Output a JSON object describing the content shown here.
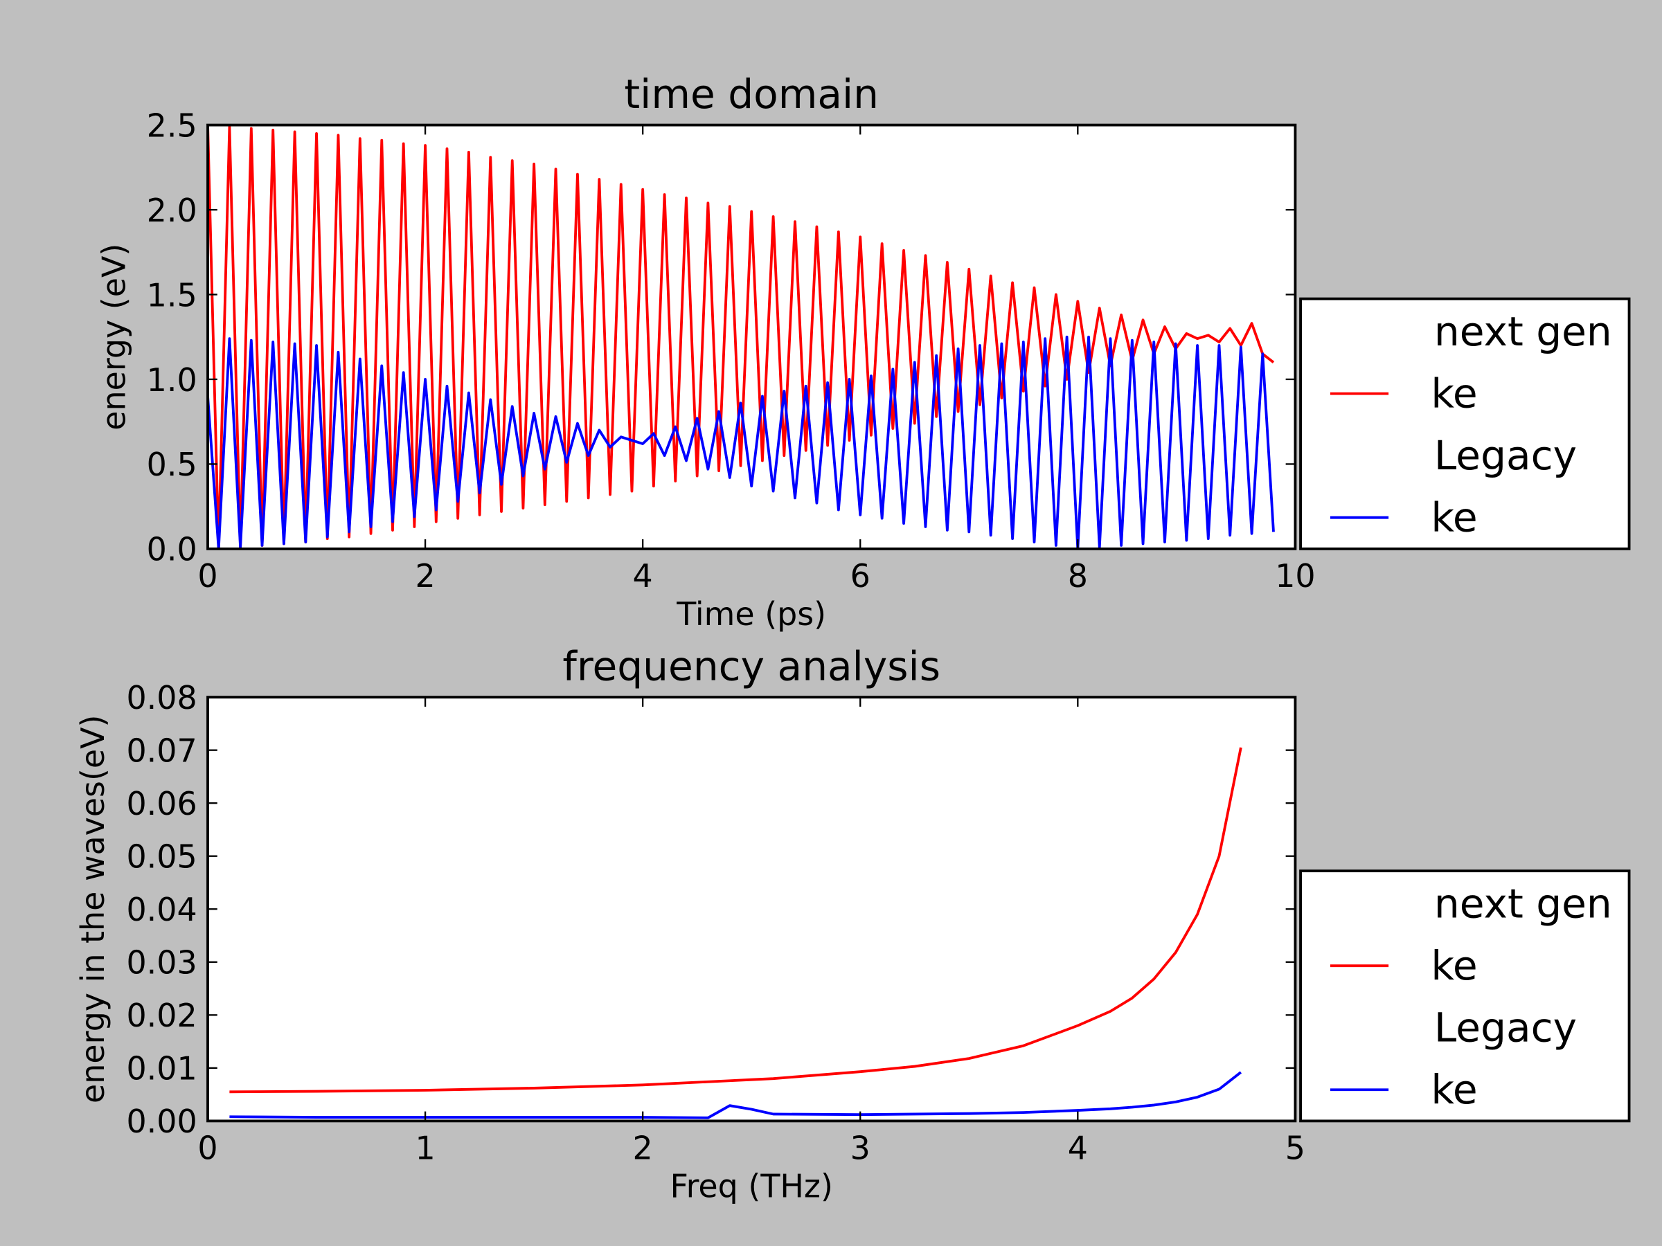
{
  "chart_data": [
    {
      "type": "line",
      "title": "time domain",
      "xlabel": "Time (ps)",
      "ylabel": "energy (eV)",
      "x": [
        0,
        0.1,
        0.2,
        0.3,
        0.4,
        0.5,
        0.6,
        0.7,
        0.8,
        0.9,
        1.0,
        1.1,
        1.2,
        1.3,
        1.4,
        1.5,
        1.6,
        1.7,
        1.8,
        1.9,
        2.0,
        2.1,
        2.2,
        2.3,
        2.4,
        2.5,
        2.6,
        2.7,
        2.8,
        2.9,
        3.0,
        3.1,
        3.2,
        3.3,
        3.4,
        3.5,
        3.6,
        3.7,
        3.8,
        3.9,
        4.0,
        4.1,
        4.2,
        4.3,
        4.4,
        4.5,
        4.6,
        4.7,
        4.8,
        4.9,
        5.0,
        5.1,
        5.2,
        5.3,
        5.4,
        5.5,
        5.6,
        5.7,
        5.8,
        5.9,
        6.0,
        6.1,
        6.2,
        6.3,
        6.4,
        6.5,
        6.6,
        6.7,
        6.8,
        6.9,
        7.0,
        7.1,
        7.2,
        7.3,
        7.4,
        7.5,
        7.6,
        7.7,
        7.8,
        7.9,
        8.0,
        8.1,
        8.2,
        8.3,
        8.4,
        8.5,
        8.6,
        8.7,
        8.8,
        8.9,
        9.0,
        9.1,
        9.2,
        9.3,
        9.4,
        9.5,
        9.6,
        9.7,
        9.8
      ],
      "series": [
        {
          "group": "next gen",
          "name": "ke",
          "color": "#ff0000",
          "values": [
            2.5,
            0.0,
            2.49,
            0.01,
            2.48,
            0.02,
            2.47,
            0.03,
            2.46,
            0.04,
            2.45,
            0.06,
            2.44,
            0.07,
            2.42,
            0.09,
            2.41,
            0.11,
            2.39,
            0.13,
            2.38,
            0.16,
            2.36,
            0.18,
            2.34,
            0.2,
            2.31,
            0.22,
            2.29,
            0.24,
            2.27,
            0.26,
            2.24,
            0.28,
            2.21,
            0.3,
            2.18,
            0.32,
            2.15,
            0.34,
            2.12,
            0.37,
            2.09,
            0.4,
            2.07,
            0.43,
            2.04,
            0.46,
            2.02,
            0.49,
            1.99,
            0.52,
            1.96,
            0.55,
            1.93,
            0.58,
            1.9,
            0.61,
            1.87,
            0.64,
            1.84,
            0.67,
            1.8,
            0.71,
            1.76,
            0.74,
            1.73,
            0.78,
            1.69,
            0.81,
            1.65,
            0.85,
            1.61,
            0.89,
            1.57,
            0.93,
            1.54,
            0.96,
            1.5,
            1.0,
            1.46,
            1.04,
            1.42,
            1.08,
            1.38,
            1.11,
            1.35,
            1.15,
            1.31,
            1.18,
            1.27,
            1.24,
            1.26,
            1.22,
            1.3,
            1.2,
            1.33,
            1.15,
            1.1
          ]
        },
        {
          "group": "Legacy",
          "name": "ke",
          "color": "#0000ff",
          "values": [
            0.9,
            0.0,
            1.24,
            0.01,
            1.23,
            0.02,
            1.22,
            0.03,
            1.21,
            0.04,
            1.2,
            0.07,
            1.16,
            0.1,
            1.12,
            0.13,
            1.08,
            0.16,
            1.04,
            0.19,
            1.0,
            0.23,
            0.96,
            0.28,
            0.92,
            0.33,
            0.88,
            0.38,
            0.84,
            0.43,
            0.8,
            0.47,
            0.78,
            0.51,
            0.74,
            0.55,
            0.7,
            0.6,
            0.66,
            0.64,
            0.62,
            0.68,
            0.55,
            0.72,
            0.52,
            0.77,
            0.47,
            0.81,
            0.42,
            0.86,
            0.37,
            0.9,
            0.34,
            0.93,
            0.3,
            0.96,
            0.27,
            0.98,
            0.23,
            1.0,
            0.2,
            1.02,
            0.18,
            1.06,
            0.15,
            1.1,
            0.13,
            1.14,
            0.11,
            1.18,
            0.1,
            1.2,
            0.08,
            1.21,
            0.06,
            1.22,
            0.04,
            1.24,
            0.02,
            1.25,
            0.0,
            1.25,
            0.01,
            1.24,
            0.02,
            1.23,
            0.03,
            1.22,
            0.04,
            1.21,
            0.05,
            1.2,
            0.06,
            1.2,
            0.08,
            1.19,
            0.09,
            1.15,
            0.1
          ]
        }
      ],
      "xlim": [
        0,
        10
      ],
      "xticks": [
        0,
        2,
        4,
        6,
        8,
        10
      ],
      "ylim": [
        0,
        2.5
      ],
      "yticks": [
        {
          "value": 0,
          "label": "0.0"
        },
        0.5,
        {
          "value": 1,
          "label": "1.0"
        },
        1.5,
        {
          "value": 2,
          "label": "2.0"
        },
        2.5
      ],
      "legend": "outside right"
    },
    {
      "type": "line",
      "title": "frequency analysis",
      "xlabel": "Freq (THz)",
      "ylabel": "energy in the waves(eV)",
      "x": [
        0.1,
        0.5,
        1.0,
        1.5,
        2.0,
        2.3,
        2.4,
        2.5,
        2.6,
        3.0,
        3.25,
        3.5,
        3.75,
        4.0,
        4.15,
        4.25,
        4.35,
        4.45,
        4.55,
        4.65,
        4.75
      ],
      "series": [
        {
          "group": "next gen",
          "name": "ke",
          "color": "#ff0000",
          "values": [
            0.0055,
            0.0056,
            0.0058,
            0.0062,
            0.0068,
            0.0074,
            0.0076,
            0.0078,
            0.008,
            0.0093,
            0.0103,
            0.0118,
            0.0142,
            0.018,
            0.0207,
            0.0232,
            0.0268,
            0.0318,
            0.039,
            0.05,
            0.0705
          ]
        },
        {
          "group": "Legacy",
          "name": "ke",
          "color": "#0000ff",
          "values": [
            0.0008,
            0.0007,
            0.0007,
            0.0007,
            0.0007,
            0.0006,
            0.0029,
            0.0022,
            0.0013,
            0.0012,
            0.0013,
            0.0014,
            0.0016,
            0.002,
            0.0023,
            0.0026,
            0.003,
            0.0036,
            0.0045,
            0.006,
            0.0092
          ]
        }
      ],
      "xlim": [
        0,
        5
      ],
      "xticks": [
        0,
        1,
        2,
        3,
        4,
        5
      ],
      "ylim": [
        0,
        0.08
      ],
      "yticks": [
        {
          "value": 0,
          "label": "0.00"
        },
        0.01,
        0.02,
        0.03,
        0.04,
        0.05,
        0.06,
        0.07,
        0.08
      ],
      "legend": "outside right"
    }
  ]
}
